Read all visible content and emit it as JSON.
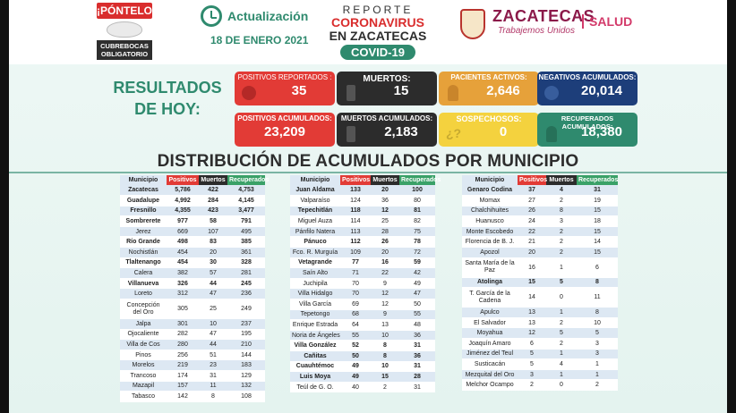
{
  "header": {
    "badge_top": "¡PÓNTELO!",
    "badge_bottom": "CUBREBOCAS OBLIGATORIO",
    "update_label": "Actualización",
    "update_date": "18 DE ENERO 2021",
    "report_line1": "REPORTE",
    "report_line2": "CORONAVIRUS",
    "report_line3": "EN ZACATECAS",
    "report_badge": "COVID-19",
    "brand_name": "ZACATECAS",
    "brand_tagline": "Trabajemos Unidos",
    "brand_dept": "SALUD"
  },
  "results": {
    "title_line1": "RESULTADOS",
    "title_line2": "DE HOY:",
    "cards": [
      {
        "label": "POSITIVOS REPORTADOS :",
        "value": "35"
      },
      {
        "label": "MUERTOS:",
        "value": "15"
      },
      {
        "label": "PACIENTES ACTIVOS:",
        "value": "2,646"
      },
      {
        "label": "NEGATIVOS ACUMULADOS:",
        "value": "20,014"
      },
      {
        "label": "POSITIVOS ACUMULADOS:",
        "value": "23,209"
      },
      {
        "label": "MUERTOS ACUMULADOS:",
        "value": "2,183"
      },
      {
        "label": "SOSPECHOSOS:",
        "value": "0"
      },
      {
        "label": "RECUPERADOS ACUMULADOS:",
        "value": "18,380"
      }
    ],
    "colors": {
      "red": "#e23b36",
      "black": "#2c2c2c",
      "orange": "#e6a13a",
      "navy": "#1d3e7a",
      "yellow": "#f4d23e",
      "teal": "#2f8a6e"
    }
  },
  "distribution": {
    "title": "DISTRIBUCIÓN DE ACUMULADOS POR MUNICIPIO",
    "headers": [
      "Municipio",
      "Positivos",
      "Muertos",
      "Recuperados"
    ],
    "tables": [
      [
        [
          "Zacatecas",
          "5,786",
          "422",
          "4,753"
        ],
        [
          "Guadalupe",
          "4,992",
          "284",
          "4,145"
        ],
        [
          "Fresnillo",
          "4,355",
          "423",
          "3,477"
        ],
        [
          "Sombrerete",
          "977",
          "58",
          "791"
        ],
        [
          "Jerez",
          "669",
          "107",
          "495"
        ],
        [
          "Río Grande",
          "498",
          "83",
          "385"
        ],
        [
          "Nochistlán",
          "454",
          "20",
          "361"
        ],
        [
          "Tlaltenango",
          "454",
          "30",
          "328"
        ],
        [
          "Calera",
          "382",
          "57",
          "281"
        ],
        [
          "Villanueva",
          "326",
          "44",
          "245"
        ],
        [
          "Loreto",
          "312",
          "47",
          "236"
        ],
        [
          "Concepción del Oro",
          "305",
          "25",
          "249"
        ],
        [
          "Jalpa",
          "301",
          "10",
          "237"
        ],
        [
          "Ojocaliente",
          "282",
          "47",
          "195"
        ],
        [
          "Villa de Cos",
          "280",
          "44",
          "210"
        ],
        [
          "Pinos",
          "256",
          "51",
          "144"
        ],
        [
          "Morelos",
          "219",
          "23",
          "183"
        ],
        [
          "Trancoso",
          "174",
          "31",
          "129"
        ],
        [
          "Mazapil",
          "157",
          "11",
          "132"
        ],
        [
          "Tabasco",
          "142",
          "8",
          "108"
        ]
      ],
      [
        [
          "Juan Aldama",
          "133",
          "20",
          "100"
        ],
        [
          "Valparaíso",
          "124",
          "36",
          "80"
        ],
        [
          "Tepechitlán",
          "118",
          "12",
          "81"
        ],
        [
          "Miguel Auza",
          "114",
          "25",
          "82"
        ],
        [
          "Pánfilo Natera",
          "113",
          "28",
          "75"
        ],
        [
          "Pánuco",
          "112",
          "26",
          "78"
        ],
        [
          "Fco. R. Murguía",
          "109",
          "20",
          "72"
        ],
        [
          "Vetagrande",
          "77",
          "16",
          "59"
        ],
        [
          "Saín Alto",
          "71",
          "22",
          "42"
        ],
        [
          "Juchipila",
          "70",
          "9",
          "49"
        ],
        [
          "Villa Hidalgo",
          "70",
          "12",
          "47"
        ],
        [
          "Villa García",
          "69",
          "12",
          "50"
        ],
        [
          "Tepetongo",
          "68",
          "9",
          "55"
        ],
        [
          "Enrique Estrada",
          "64",
          "13",
          "48"
        ],
        [
          "Noria de Ángeles",
          "55",
          "10",
          "36"
        ],
        [
          "Villa González",
          "52",
          "8",
          "31"
        ],
        [
          "Cañitas",
          "50",
          "8",
          "36"
        ],
        [
          "Cuauhtémoc",
          "49",
          "10",
          "31"
        ],
        [
          "Luis Moya",
          "49",
          "15",
          "28"
        ],
        [
          "Teúl de G. O.",
          "40",
          "2",
          "31"
        ]
      ],
      [
        [
          "Genaro Codina",
          "37",
          "4",
          "31"
        ],
        [
          "Momax",
          "27",
          "2",
          "19"
        ],
        [
          "Chalchihuites",
          "26",
          "8",
          "15"
        ],
        [
          "Huanusco",
          "24",
          "3",
          "18"
        ],
        [
          "Monte Escobedo",
          "22",
          "2",
          "15"
        ],
        [
          "Florencia de B. J.",
          "21",
          "2",
          "14"
        ],
        [
          "Apozol",
          "20",
          "2",
          "15"
        ],
        [
          "Santa María de la Paz",
          "16",
          "1",
          "6"
        ],
        [
          "Atolinga",
          "15",
          "5",
          "8"
        ],
        [
          "T. García de la Cadena",
          "14",
          "0",
          "11"
        ],
        [
          "Apulco",
          "13",
          "1",
          "8"
        ],
        [
          "El Salvador",
          "13",
          "2",
          "10"
        ],
        [
          "Moyahua",
          "12",
          "5",
          "5"
        ],
        [
          "Joaquín Amaro",
          "6",
          "2",
          "3"
        ],
        [
          "Jiménez del Teul",
          "5",
          "1",
          "3"
        ],
        [
          "Susticacán",
          "5",
          "4",
          "1"
        ],
        [
          "Mezquital del Oro",
          "3",
          "1",
          "1"
        ],
        [
          "Melchor Ocampo",
          "2",
          "0",
          "2"
        ]
      ]
    ]
  }
}
